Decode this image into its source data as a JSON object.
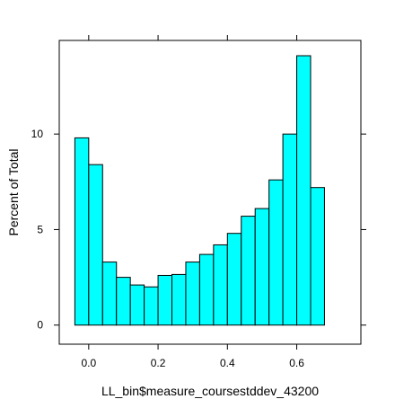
{
  "chart_data": {
    "type": "bar",
    "subtype": "histogram",
    "xlabel": "LL_bin$measure_coursestddev_43200",
    "ylabel": "Percent of Total",
    "x_ticks": [
      "0.0",
      "0.2",
      "0.4",
      "0.6"
    ],
    "x_tick_values": [
      0.0,
      0.2,
      0.4,
      0.6
    ],
    "y_ticks": [
      "0",
      "5",
      "10"
    ],
    "y_tick_values": [
      0,
      5,
      10
    ],
    "xlim": [
      -0.085,
      0.785
    ],
    "ylim": [
      -1.0,
      14.9
    ],
    "bin_width": 0.04,
    "bins": [
      {
        "start": -0.04,
        "end": 0.0,
        "value": 9.8
      },
      {
        "start": 0.0,
        "end": 0.04,
        "value": 8.4
      },
      {
        "start": 0.04,
        "end": 0.08,
        "value": 3.3
      },
      {
        "start": 0.08,
        "end": 0.12,
        "value": 2.5
      },
      {
        "start": 0.12,
        "end": 0.16,
        "value": 2.1
      },
      {
        "start": 0.16,
        "end": 0.2,
        "value": 2.0
      },
      {
        "start": 0.2,
        "end": 0.24,
        "value": 2.6
      },
      {
        "start": 0.24,
        "end": 0.28,
        "value": 2.65
      },
      {
        "start": 0.28,
        "end": 0.32,
        "value": 3.3
      },
      {
        "start": 0.32,
        "end": 0.36,
        "value": 3.7
      },
      {
        "start": 0.36,
        "end": 0.4,
        "value": 4.2
      },
      {
        "start": 0.4,
        "end": 0.44,
        "value": 4.8
      },
      {
        "start": 0.44,
        "end": 0.48,
        "value": 5.7
      },
      {
        "start": 0.48,
        "end": 0.52,
        "value": 6.1
      },
      {
        "start": 0.52,
        "end": 0.56,
        "value": 7.6
      },
      {
        "start": 0.56,
        "end": 0.6,
        "value": 10.0
      },
      {
        "start": 0.6,
        "end": 0.64,
        "value": 14.1
      },
      {
        "start": 0.64,
        "end": 0.68,
        "value": 7.2
      }
    ],
    "bar_color": "#00FFFF",
    "bar_edge_color": "#000000",
    "grid": false,
    "legend": "none"
  }
}
